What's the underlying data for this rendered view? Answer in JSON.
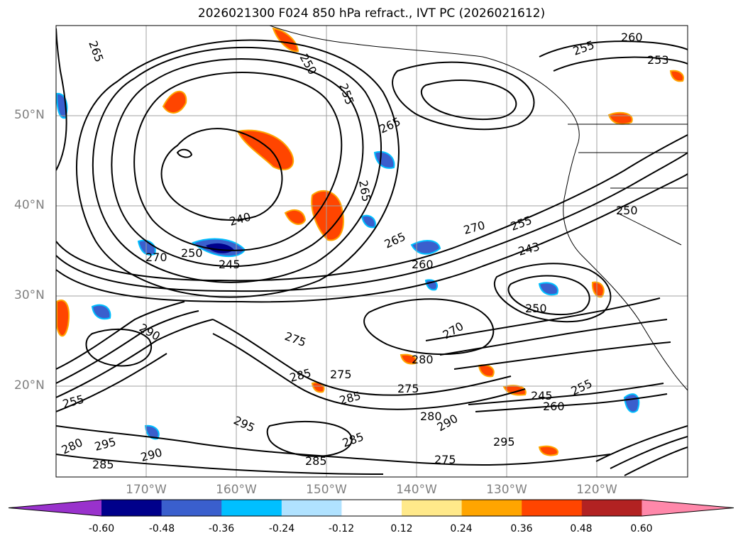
{
  "title": "2026021300 F024 850 hPa refract., IVT PC (2026021612)",
  "lat_labels": [
    "50°N",
    "40°N",
    "30°N",
    "20°N"
  ],
  "lon_labels": [
    "170°W",
    "160°W",
    "150°W",
    "140°W",
    "130°W",
    "120°W"
  ],
  "contour_labels": [
    "265",
    "260",
    "255",
    "253",
    "250",
    "255",
    "250",
    "265",
    "265",
    "240",
    "270",
    "250",
    "245",
    "265",
    "270",
    "255",
    "243",
    "260",
    "250",
    "275",
    "285",
    "275",
    "285",
    "290",
    "255",
    "280",
    "295",
    "285",
    "295",
    "290",
    "285",
    "280",
    "290",
    "275",
    "270",
    "245",
    "260",
    "255",
    "275",
    "280",
    "285",
    "295"
  ],
  "colorbar": {
    "ticks": [
      "-0.60",
      "-0.48",
      "-0.36",
      "-0.24",
      "-0.12",
      "0.12",
      "0.24",
      "0.36",
      "0.48",
      "0.60"
    ],
    "colors": [
      "#9932cc",
      "#00008b",
      "#3a5fcd",
      "#00bfff",
      "#b0e2ff",
      "#ffffff",
      "#ffe98a",
      "#ffa500",
      "#ff4500",
      "#b22222",
      "#ff88aa"
    ]
  },
  "colors": {
    "contour": "#000000",
    "coast": "#000000",
    "grid": "#a0a0a0"
  }
}
